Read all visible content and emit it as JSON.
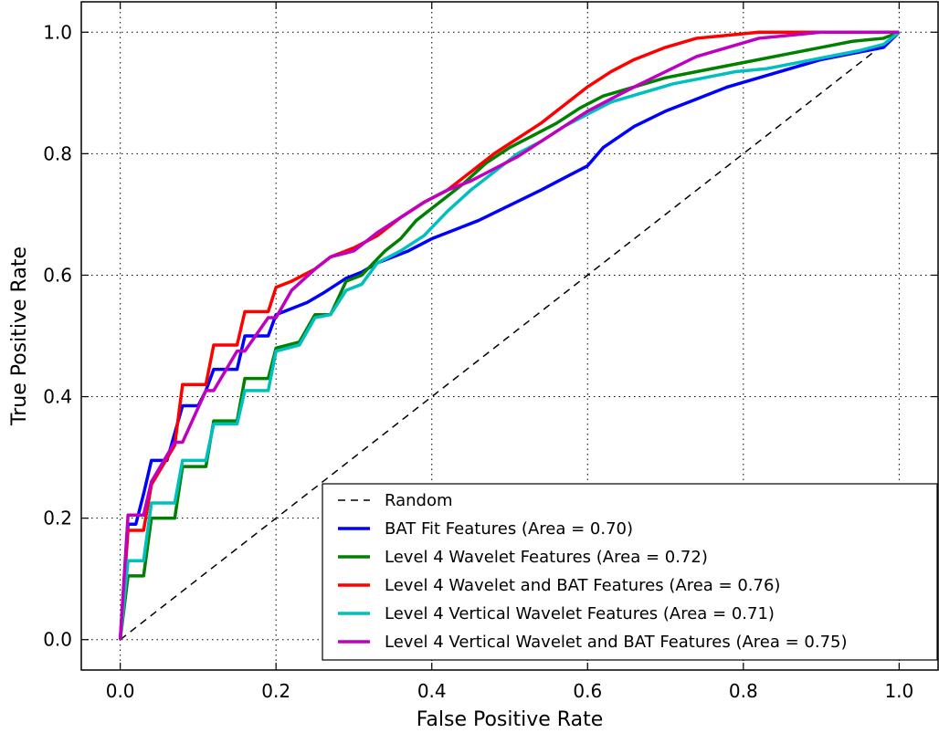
{
  "chart_data": {
    "type": "line",
    "title": "",
    "xlabel": "False Positive Rate",
    "ylabel": "True Positive Rate",
    "xlim": [
      -0.05,
      1.05
    ],
    "ylim": [
      -0.05,
      1.05
    ],
    "xticks": [
      0.0,
      0.2,
      0.4,
      0.6,
      0.8,
      1.0
    ],
    "yticks": [
      0.0,
      0.2,
      0.4,
      0.6,
      0.8,
      1.0
    ],
    "xtick_labels": [
      "0.0",
      "0.2",
      "0.4",
      "0.6",
      "0.8",
      "1.0"
    ],
    "ytick_labels": [
      "0.0",
      "0.2",
      "0.4",
      "0.6",
      "0.8",
      "1.0"
    ],
    "grid": true,
    "legend_position": "lower-right",
    "series": [
      {
        "name": "Random",
        "color": "#000000",
        "dashed": true,
        "x": [
          0.0,
          1.0
        ],
        "y": [
          0.0,
          1.0
        ]
      },
      {
        "name": "BAT Fit Features (Area = 0.70)",
        "color": "#0000ff",
        "x": [
          0.0,
          0.01,
          0.02,
          0.03,
          0.04,
          0.06,
          0.07,
          0.08,
          0.1,
          0.11,
          0.12,
          0.15,
          0.16,
          0.19,
          0.2,
          0.24,
          0.26,
          0.29,
          0.31,
          0.33,
          0.37,
          0.4,
          0.42,
          0.46,
          0.5,
          0.54,
          0.57,
          0.6,
          0.62,
          0.66,
          0.7,
          0.74,
          0.78,
          0.82,
          0.86,
          0.9,
          0.94,
          0.98,
          1.0
        ],
        "y": [
          0.0,
          0.19,
          0.19,
          0.24,
          0.295,
          0.295,
          0.34,
          0.385,
          0.385,
          0.41,
          0.445,
          0.445,
          0.5,
          0.5,
          0.535,
          0.555,
          0.57,
          0.595,
          0.605,
          0.62,
          0.64,
          0.66,
          0.67,
          0.69,
          0.715,
          0.74,
          0.76,
          0.78,
          0.81,
          0.845,
          0.87,
          0.89,
          0.91,
          0.925,
          0.94,
          0.955,
          0.965,
          0.975,
          1.0
        ]
      },
      {
        "name": "Level 4 Wavelet Features (Area = 0.72)",
        "color": "#008000",
        "x": [
          0.0,
          0.01,
          0.03,
          0.04,
          0.07,
          0.08,
          0.11,
          0.12,
          0.15,
          0.16,
          0.19,
          0.2,
          0.23,
          0.25,
          0.27,
          0.29,
          0.31,
          0.34,
          0.36,
          0.38,
          0.41,
          0.44,
          0.47,
          0.5,
          0.53,
          0.56,
          0.59,
          0.62,
          0.66,
          0.7,
          0.74,
          0.78,
          0.82,
          0.86,
          0.9,
          0.94,
          0.98,
          1.0
        ],
        "y": [
          0.0,
          0.105,
          0.105,
          0.2,
          0.2,
          0.285,
          0.285,
          0.36,
          0.36,
          0.43,
          0.43,
          0.48,
          0.49,
          0.535,
          0.535,
          0.59,
          0.6,
          0.64,
          0.66,
          0.69,
          0.72,
          0.75,
          0.785,
          0.81,
          0.83,
          0.85,
          0.875,
          0.895,
          0.91,
          0.925,
          0.935,
          0.945,
          0.955,
          0.965,
          0.975,
          0.985,
          0.99,
          1.0
        ]
      },
      {
        "name": "Level 4 Wavelet and BAT Features (Area = 0.76)",
        "color": "#ff0000",
        "x": [
          0.0,
          0.01,
          0.03,
          0.04,
          0.07,
          0.08,
          0.11,
          0.12,
          0.15,
          0.16,
          0.19,
          0.2,
          0.22,
          0.25,
          0.27,
          0.3,
          0.33,
          0.36,
          0.39,
          0.42,
          0.45,
          0.48,
          0.51,
          0.54,
          0.57,
          0.6,
          0.63,
          0.66,
          0.7,
          0.74,
          0.78,
          0.82,
          0.86,
          0.9,
          0.95,
          1.0
        ],
        "y": [
          0.0,
          0.18,
          0.18,
          0.255,
          0.32,
          0.42,
          0.42,
          0.485,
          0.485,
          0.54,
          0.54,
          0.58,
          0.59,
          0.61,
          0.63,
          0.645,
          0.665,
          0.695,
          0.72,
          0.74,
          0.77,
          0.8,
          0.825,
          0.85,
          0.88,
          0.91,
          0.935,
          0.955,
          0.975,
          0.99,
          0.995,
          1.0,
          1.0,
          1.0,
          1.0,
          1.0
        ]
      },
      {
        "name": "Level 4 Vertical Wavelet Features (Area = 0.71)",
        "color": "#00bfbf",
        "x": [
          0.0,
          0.01,
          0.03,
          0.04,
          0.07,
          0.08,
          0.11,
          0.12,
          0.15,
          0.16,
          0.19,
          0.2,
          0.23,
          0.25,
          0.27,
          0.29,
          0.31,
          0.33,
          0.36,
          0.39,
          0.42,
          0.45,
          0.48,
          0.51,
          0.54,
          0.57,
          0.6,
          0.63,
          0.67,
          0.71,
          0.75,
          0.79,
          0.83,
          0.87,
          0.91,
          0.95,
          0.98,
          1.0
        ],
        "y": [
          0.0,
          0.13,
          0.13,
          0.225,
          0.225,
          0.295,
          0.295,
          0.355,
          0.355,
          0.41,
          0.41,
          0.475,
          0.485,
          0.53,
          0.535,
          0.575,
          0.585,
          0.62,
          0.64,
          0.665,
          0.705,
          0.74,
          0.77,
          0.8,
          0.82,
          0.845,
          0.865,
          0.885,
          0.9,
          0.915,
          0.925,
          0.935,
          0.94,
          0.95,
          0.96,
          0.97,
          0.98,
          1.0
        ]
      },
      {
        "name": "Level 4 Vertical Wavelet and BAT Features (Area = 0.75)",
        "color": "#bf00bf",
        "x": [
          0.0,
          0.01,
          0.03,
          0.04,
          0.07,
          0.08,
          0.11,
          0.12,
          0.15,
          0.16,
          0.19,
          0.2,
          0.22,
          0.25,
          0.27,
          0.3,
          0.33,
          0.36,
          0.39,
          0.42,
          0.45,
          0.48,
          0.51,
          0.54,
          0.57,
          0.6,
          0.63,
          0.66,
          0.7,
          0.74,
          0.78,
          0.82,
          0.86,
          0.9,
          0.95,
          1.0
        ],
        "y": [
          0.0,
          0.205,
          0.205,
          0.26,
          0.325,
          0.325,
          0.41,
          0.41,
          0.475,
          0.475,
          0.53,
          0.53,
          0.575,
          0.61,
          0.63,
          0.64,
          0.67,
          0.695,
          0.72,
          0.74,
          0.755,
          0.775,
          0.795,
          0.82,
          0.845,
          0.87,
          0.89,
          0.91,
          0.935,
          0.96,
          0.975,
          0.99,
          0.995,
          1.0,
          1.0,
          1.0
        ]
      }
    ]
  }
}
